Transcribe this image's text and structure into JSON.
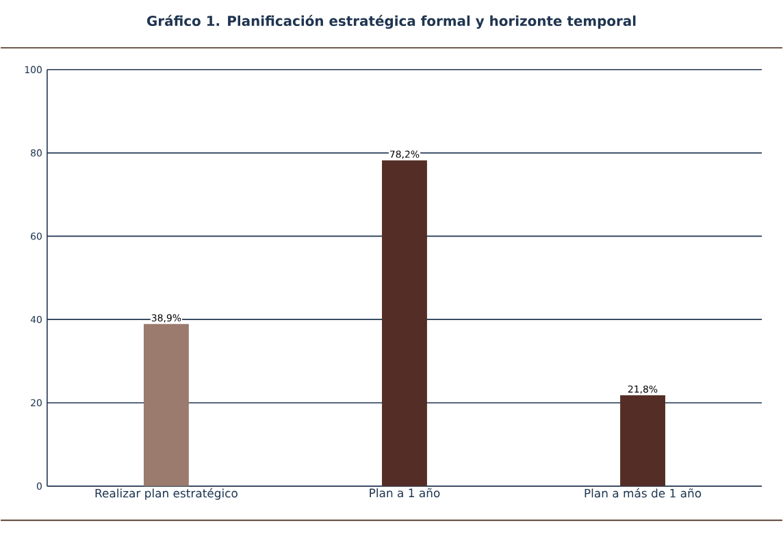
{
  "chart_data": {
    "type": "bar",
    "title": "Gráfico 1. Planificación estratégica formal y horizonte temporal",
    "categories": [
      "Realizar plan estratégico",
      "Plan a 1 año",
      "Plan a más de 1 año"
    ],
    "values": [
      38.9,
      78.2,
      21.8
    ],
    "colors": [
      "#9b7b6e",
      "#542e26",
      "#542e26"
    ],
    "value_labels": [
      "38,9%",
      "78,2%",
      "21,8%"
    ],
    "ylim": [
      0,
      100
    ],
    "yticks": [
      0,
      20,
      40,
      60,
      80,
      100
    ],
    "grid": "y"
  }
}
